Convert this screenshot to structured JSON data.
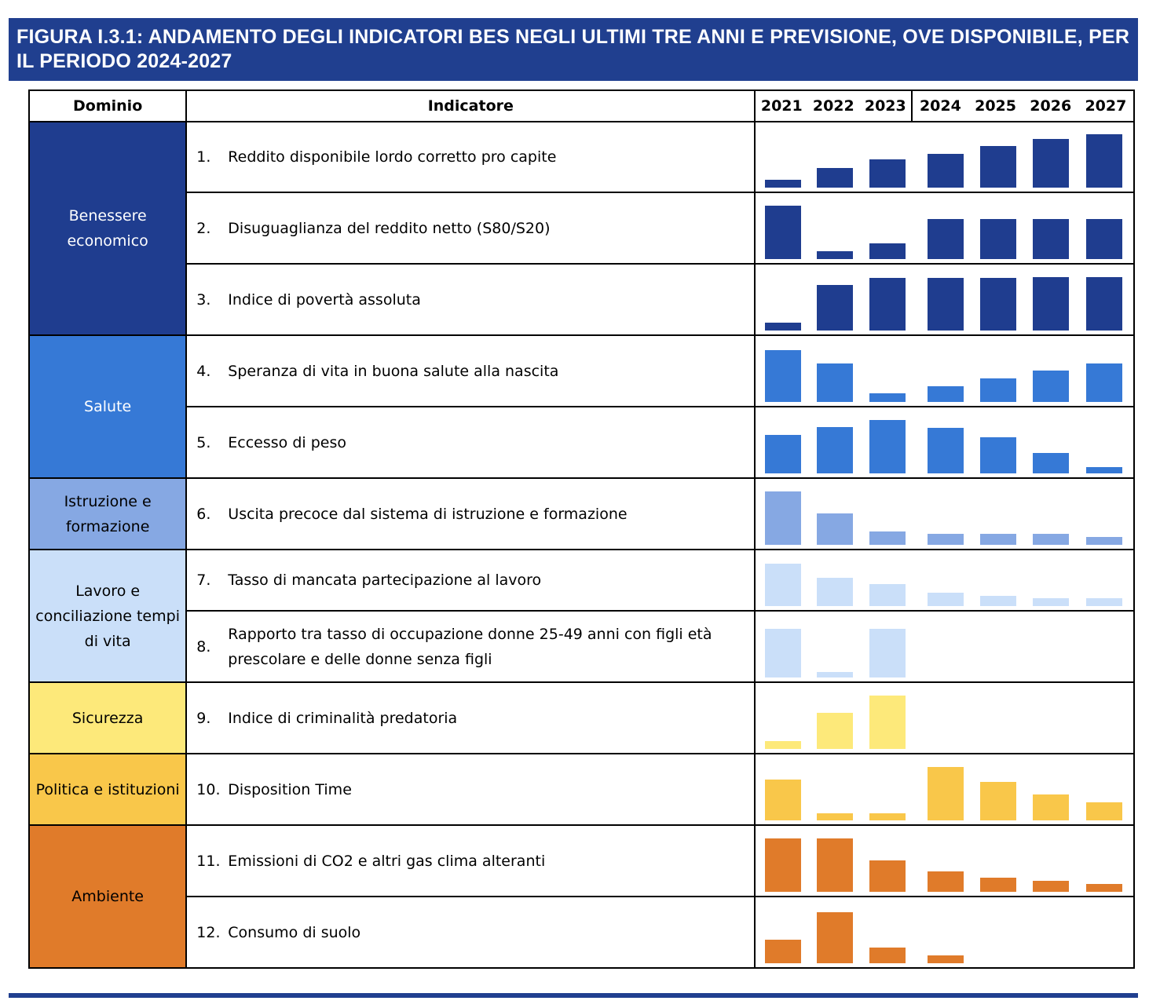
{
  "title": "FIGURA I.3.1: ANDAMENTO DEGLI INDICATORI BES NEGLI ULTIMI TRE ANNI E PREVISIONE, OVE DISPONIBILE, PER IL PERIODO 2024-2027",
  "headers": {
    "dominio": "Dominio",
    "indicatore": "Indicatore"
  },
  "years": [
    "2021",
    "2022",
    "2023",
    "2024",
    "2025",
    "2026",
    "2027"
  ],
  "domains": [
    {
      "label": "Benessere economico",
      "color": "#1f3d8f",
      "text_color": "#ffffff",
      "rows": 3
    },
    {
      "label": "Salute",
      "color": "#3679d6",
      "text_color": "#ffffff",
      "rows": 2
    },
    {
      "label": "Istruzione e formazione",
      "color": "#86a8e3",
      "text_color": "#000000",
      "rows": 1
    },
    {
      "label": "Lavoro e conciliazione tempi di vita",
      "color": "#cadff9",
      "text_color": "#000000",
      "rows": 2
    },
    {
      "label": "Sicurezza",
      "color": "#fde97a",
      "text_color": "#000000",
      "rows": 1
    },
    {
      "label": "Politica e istituzioni",
      "color": "#f9c74a",
      "text_color": "#000000",
      "rows": 1
    },
    {
      "label": "Ambiente",
      "color": "#e07b2a",
      "text_color": "#000000",
      "rows": 2
    }
  ],
  "chart_data": {
    "type": "bar",
    "title": "Andamento degli indicatori BES negli ultimi tre anni e previsione, ove disponibile, per il periodo 2024-2027",
    "categories": [
      "2021",
      "2022",
      "2023",
      "2024",
      "2025",
      "2026",
      "2027"
    ],
    "note": "Relative bar heights per indicator (0-100 scale, no numeric axis shown)",
    "series": [
      {
        "num": "1.",
        "name": "Reddito disponibile lordo corretto pro capite",
        "domain": 0,
        "values": [
          15,
          37,
          53,
          63,
          78,
          91,
          100
        ]
      },
      {
        "num": "2.",
        "name": "Disuguaglianza del reddito netto (S80/S20)",
        "domain": 0,
        "values": [
          100,
          15,
          29,
          75,
          75,
          75,
          75
        ]
      },
      {
        "num": "3.",
        "name": "Indice di povertà assoluta",
        "domain": 0,
        "values": [
          15,
          85,
          99,
          99,
          99,
          100,
          100
        ]
      },
      {
        "num": "4.",
        "name": "Speranza di vita in buona salute alla nascita",
        "domain": 1,
        "values": [
          97,
          72,
          16,
          29,
          44,
          59,
          72
        ]
      },
      {
        "num": "5.",
        "name": "Eccesso di peso",
        "domain": 1,
        "values": [
          72,
          87,
          100,
          85,
          68,
          38,
          12
        ]
      },
      {
        "num": "6.",
        "name": "Uscita precoce dal sistema di istruzione e formazione",
        "domain": 2,
        "values": [
          100,
          59,
          25,
          21,
          21,
          21,
          15
        ]
      },
      {
        "num": "7.",
        "name": "Tasso di mancata partecipazione al lavoro",
        "domain": 3,
        "values": [
          79,
          53,
          41,
          25,
          19,
          15,
          15
        ]
      },
      {
        "num": "8.",
        "name": "Rapporto tra tasso di occupazione donne 25-49 anni con figli età prescolare e delle donne senza figli",
        "domain": 3,
        "values": [
          91,
          10,
          91,
          null,
          null,
          null,
          null
        ]
      },
      {
        "num": "9.",
        "name": "Indice di criminalità predatoria",
        "domain": 4,
        "values": [
          15,
          68,
          100,
          null,
          null,
          null,
          null
        ]
      },
      {
        "num": "10.",
        "name": "Disposition Time",
        "domain": 5,
        "values": [
          76,
          13,
          13,
          100,
          72,
          49,
          34
        ]
      },
      {
        "num": "11.",
        "name": "Emissioni di CO2 e altri gas clima alteranti",
        "domain": 6,
        "values": [
          100,
          100,
          59,
          38,
          26,
          21,
          15
        ]
      },
      {
        "num": "12.",
        "name": "Consumo di suolo",
        "domain": 6,
        "values": [
          44,
          96,
          29,
          15,
          null,
          null,
          null
        ]
      }
    ]
  }
}
